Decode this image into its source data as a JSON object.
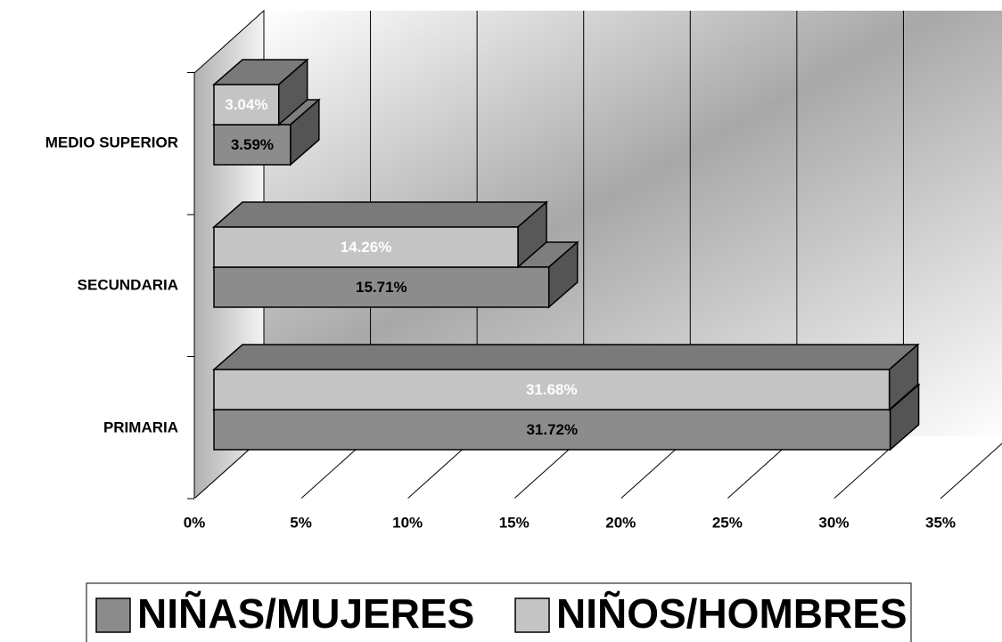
{
  "chart_data": {
    "type": "bar",
    "categories": [
      "PRIMARIA",
      "SECUNDARIA",
      "MEDIO SUPERIOR"
    ],
    "series": [
      {
        "name": "NIÑAS/MUJERES",
        "color": "#8c8c8c",
        "values": [
          31.72,
          15.71,
          3.59
        ],
        "value_labels": [
          "31.72%",
          "15.71%",
          "3.59%"
        ]
      },
      {
        "name": "NIÑOS/HOMBRES",
        "color": "#c4c4c4",
        "values": [
          31.68,
          14.26,
          3.04
        ],
        "value_labels": [
          "31.68%",
          "14.26%",
          "3.04%"
        ]
      }
    ],
    "xlim": [
      0,
      35
    ],
    "xticks": [
      {
        "value": 0,
        "label": "0%"
      },
      {
        "value": 5,
        "label": "5%"
      },
      {
        "value": 10,
        "label": "10%"
      },
      {
        "value": 15,
        "label": "15%"
      },
      {
        "value": 20,
        "label": "20%"
      },
      {
        "value": 25,
        "label": "25%"
      },
      {
        "value": 30,
        "label": "30%"
      },
      {
        "value": 35,
        "label": "35%"
      }
    ],
    "grid": true,
    "legend": "bottom"
  }
}
